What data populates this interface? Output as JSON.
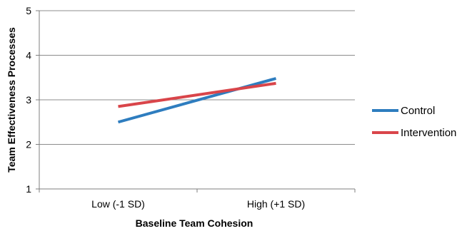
{
  "chart_data": {
    "type": "line",
    "categories": [
      "Low (-1 SD)",
      "High (+1 SD)"
    ],
    "series": [
      {
        "name": "Control",
        "values": [
          2.5,
          3.48
        ],
        "color": "#2e7dbf"
      },
      {
        "name": "Intervention",
        "values": [
          2.85,
          3.37
        ],
        "color": "#d9454a"
      }
    ],
    "xlabel": "Baseline Team Cohesion",
    "ylabel": "Team Effectiveness Processes",
    "ylim": [
      1,
      5
    ],
    "yticks": [
      "1",
      "2",
      "3",
      "4",
      "5"
    ],
    "grid": true,
    "legend_position": "right"
  }
}
